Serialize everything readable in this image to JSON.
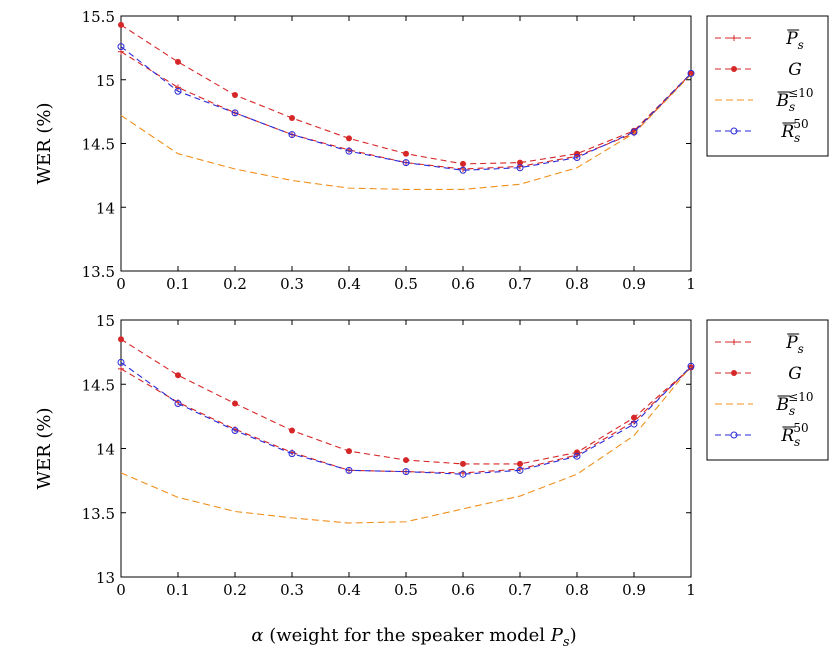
{
  "figure": {
    "xlabel": "α (weight for the speaker model P_s)",
    "xlabel_parts": {
      "alpha": "α",
      "text": " (weight for the speaker model ",
      "P": "P",
      "sub": "s",
      "close": ")"
    }
  },
  "series_style": [
    {
      "key": "Ps_bar",
      "color": "#d62728",
      "dash": "6,4",
      "marker": "plus"
    },
    {
      "key": "G",
      "color": "#d62728",
      "dash": "6,4",
      "marker": "dot"
    },
    {
      "key": "Bs_le10",
      "color": "#f0901c",
      "dash": "7,4",
      "marker": "none"
    },
    {
      "key": "Rs_50",
      "color": "#2a2ad8",
      "dash": "6,4",
      "marker": "circle"
    }
  ],
  "legend_labels": [
    {
      "main": "P",
      "bar": true,
      "sub": "s",
      "sup": ""
    },
    {
      "main": "G",
      "bar": false,
      "sub": "",
      "sup": ""
    },
    {
      "main": "B",
      "bar": true,
      "sub": "s",
      "sup": "≤10"
    },
    {
      "main": "R",
      "bar": true,
      "sub": "s",
      "sup": "50"
    }
  ],
  "chart_data": [
    {
      "type": "line",
      "title": "",
      "xlabel": "",
      "ylabel": "WER (%)",
      "xlim": [
        0,
        1
      ],
      "ylim": [
        13.5,
        15.5
      ],
      "xticks": [
        "0",
        "0.1",
        "0.2",
        "0.3",
        "0.4",
        "0.5",
        "0.6",
        "0.7",
        "0.8",
        "0.9",
        "1"
      ],
      "yticks": [
        "13.5",
        "14",
        "14.5",
        "15",
        "15.5"
      ],
      "x": [
        0,
        0.1,
        0.2,
        0.3,
        0.4,
        0.5,
        0.6,
        0.7,
        0.8,
        0.9,
        1
      ],
      "grid": false,
      "legend": "outside-right",
      "series": [
        {
          "name": "P̄_s",
          "values": [
            15.22,
            14.94,
            14.74,
            14.57,
            14.45,
            14.35,
            14.3,
            14.32,
            14.4,
            14.58,
            15.05
          ]
        },
        {
          "name": "G",
          "values": [
            15.43,
            15.14,
            14.88,
            14.7,
            14.54,
            14.42,
            14.34,
            14.35,
            14.42,
            14.6,
            15.05
          ]
        },
        {
          "name": "B̄_s^≤10",
          "values": [
            14.72,
            14.42,
            14.3,
            14.21,
            14.15,
            14.14,
            14.14,
            14.18,
            14.31,
            14.58,
            15.04
          ]
        },
        {
          "name": "R̄_s^50",
          "values": [
            15.26,
            14.91,
            14.74,
            14.57,
            14.44,
            14.35,
            14.29,
            14.31,
            14.39,
            14.59,
            15.05
          ]
        }
      ]
    },
    {
      "type": "line",
      "title": "",
      "xlabel": "α (weight for the speaker model P_s)",
      "ylabel": "WER (%)",
      "xlim": [
        0,
        1
      ],
      "ylim": [
        13,
        15
      ],
      "xticks": [
        "0",
        "0.1",
        "0.2",
        "0.3",
        "0.4",
        "0.5",
        "0.6",
        "0.7",
        "0.8",
        "0.9",
        "1"
      ],
      "yticks": [
        "13",
        "13.5",
        "14",
        "14.5",
        "15"
      ],
      "x": [
        0,
        0.1,
        0.2,
        0.3,
        0.4,
        0.5,
        0.6,
        0.7,
        0.8,
        0.9,
        1
      ],
      "grid": false,
      "legend": "outside-right",
      "series": [
        {
          "name": "P̄_s",
          "values": [
            14.62,
            14.36,
            14.15,
            13.97,
            13.83,
            13.82,
            13.81,
            13.84,
            13.95,
            14.21,
            14.63
          ]
        },
        {
          "name": "G",
          "values": [
            14.85,
            14.57,
            14.35,
            14.14,
            13.98,
            13.91,
            13.88,
            13.88,
            13.97,
            14.24,
            14.63
          ]
        },
        {
          "name": "B̄_s^≤10",
          "values": [
            13.81,
            13.62,
            13.51,
            13.46,
            13.42,
            13.43,
            13.53,
            13.63,
            13.8,
            14.1,
            14.64
          ]
        },
        {
          "name": "R̄_s^50",
          "values": [
            14.67,
            14.35,
            14.14,
            13.96,
            13.83,
            13.82,
            13.8,
            13.83,
            13.94,
            14.19,
            14.64
          ]
        }
      ]
    }
  ]
}
